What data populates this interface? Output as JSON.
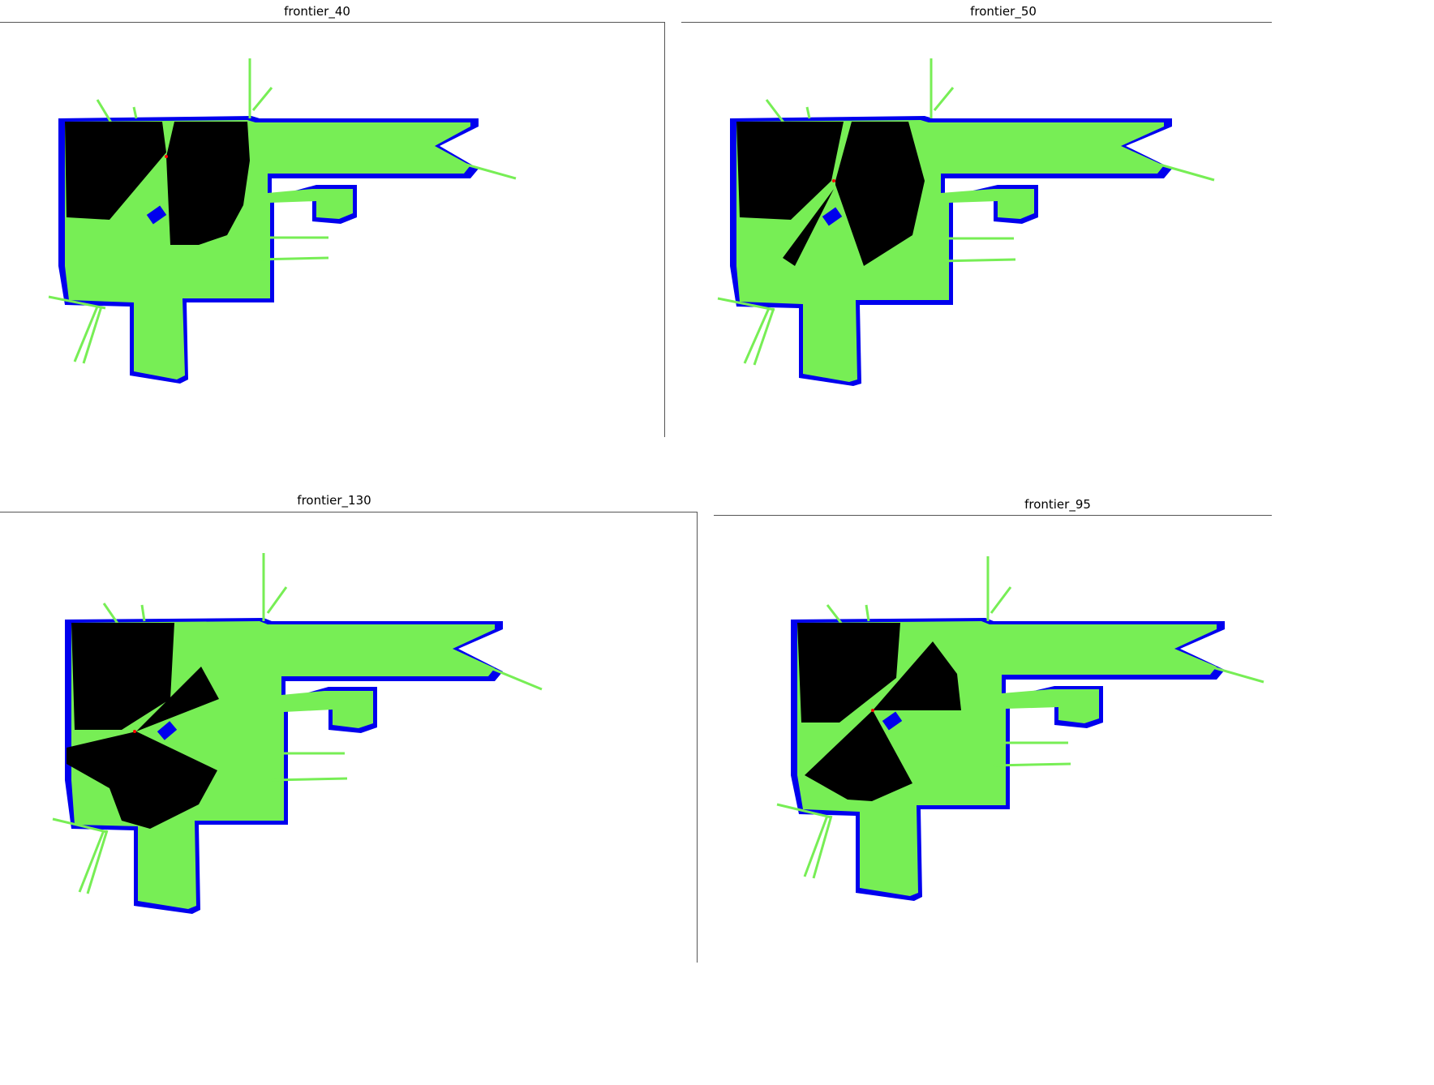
{
  "colors": {
    "free": "#77ee55",
    "obstacle": "#0000ee",
    "explored": "#000000",
    "robot": "#ff0000",
    "background": "#ffffff"
  },
  "panels": [
    {
      "title": "frontier_40"
    },
    {
      "title": "frontier_50"
    },
    {
      "title": "frontier_130"
    },
    {
      "title": "frontier_95"
    }
  ]
}
